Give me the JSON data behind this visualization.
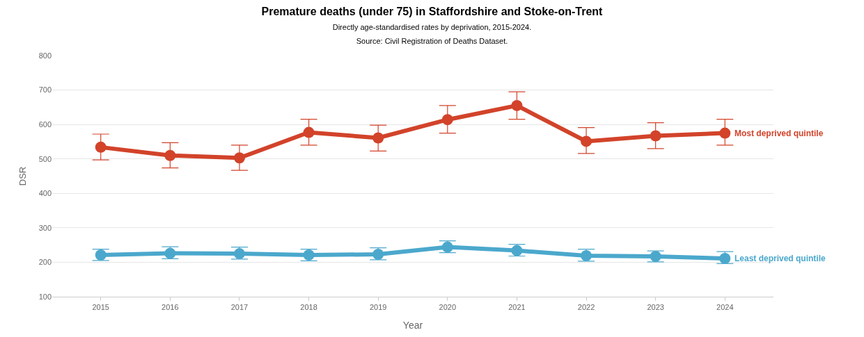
{
  "chart_data": {
    "type": "line",
    "title": "Premature deaths (under 75) in Staffordshire and Stoke-on-Trent",
    "subtitle": "Directly age-standardised rates by deprivation, 2015-2024.\nSource: Civil Registration of Deaths Dataset.",
    "xlabel": "Year",
    "ylabel": "DSR",
    "categories": [
      "2015",
      "2016",
      "2017",
      "2018",
      "2019",
      "2020",
      "2021",
      "2022",
      "2023",
      "2024"
    ],
    "series": [
      {
        "name": "Most deprived quintile",
        "color": "#d2432a",
        "values": [
          534,
          510,
          503,
          577,
          561,
          614,
          655,
          551,
          567,
          575
        ],
        "errors": [
          [
            497,
            572
          ],
          [
            474,
            547
          ],
          [
            467,
            540
          ],
          [
            540,
            615
          ],
          [
            523,
            598
          ],
          [
            575,
            655
          ],
          [
            615,
            695
          ],
          [
            516,
            591
          ],
          [
            530,
            605
          ],
          [
            540,
            615
          ]
        ]
      },
      {
        "name": "Least deprived quintile",
        "color": "#4ba8cc",
        "values": [
          221,
          226,
          225,
          221,
          223,
          244,
          234,
          219,
          217,
          211
        ],
        "errors": [
          [
            205,
            238
          ],
          [
            210,
            245
          ],
          [
            209,
            244
          ],
          [
            204,
            238
          ],
          [
            207,
            242
          ],
          [
            228,
            262
          ],
          [
            218,
            252
          ],
          [
            203,
            238
          ],
          [
            201,
            233
          ],
          [
            196,
            231
          ]
        ]
      }
    ],
    "ylim": [
      100,
      800
    ],
    "yticks": [
      100,
      200,
      300,
      400,
      500,
      600,
      700,
      800
    ],
    "grid": "y",
    "legend": false,
    "marker": "circle",
    "line_style": "solid"
  }
}
